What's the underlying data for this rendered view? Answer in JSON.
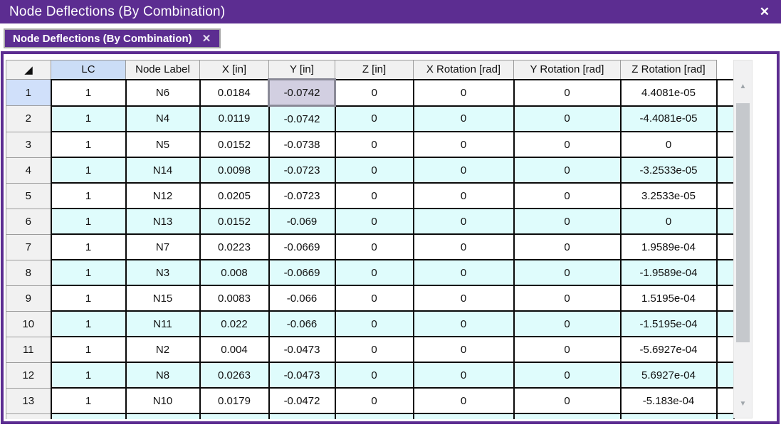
{
  "window": {
    "title": "Node Deflections (By Combination)"
  },
  "tab": {
    "label": "Node Deflections (By Combination)"
  },
  "icons": {
    "close": "✕",
    "corner_triangle": "◢",
    "arrow_up": "▲",
    "arrow_down": "▼"
  },
  "colors": {
    "accent_purple": "#5C2D91",
    "stripe_cyan": "#DFFCFC",
    "header_blue": "#CBDDF6",
    "selected_row_header_blue": "#D0E0FA",
    "selected_cell_fill": "#D2CFE1",
    "selected_cell_border": "#8A8A97"
  },
  "table": {
    "columns": [
      "LC",
      "Node Label",
      "X [in]",
      "Y [in]",
      "Z [in]",
      "X Rotation [rad]",
      "Y Rotation [rad]",
      "Z Rotation [rad]"
    ],
    "selected": {
      "row_num": "1",
      "col_index": 3
    },
    "rows": [
      {
        "num": "1",
        "cells": [
          "1",
          "N6",
          "0.0184",
          "-0.0742",
          "0",
          "0",
          "0",
          "4.4081e-05"
        ]
      },
      {
        "num": "2",
        "cells": [
          "1",
          "N4",
          "0.0119",
          "-0.0742",
          "0",
          "0",
          "0",
          "-4.4081e-05"
        ]
      },
      {
        "num": "3",
        "cells": [
          "1",
          "N5",
          "0.0152",
          "-0.0738",
          "0",
          "0",
          "0",
          "0"
        ]
      },
      {
        "num": "4",
        "cells": [
          "1",
          "N14",
          "0.0098",
          "-0.0723",
          "0",
          "0",
          "0",
          "-3.2533e-05"
        ]
      },
      {
        "num": "5",
        "cells": [
          "1",
          "N12",
          "0.0205",
          "-0.0723",
          "0",
          "0",
          "0",
          "3.2533e-05"
        ]
      },
      {
        "num": "6",
        "cells": [
          "1",
          "N13",
          "0.0152",
          "-0.069",
          "0",
          "0",
          "0",
          "0"
        ]
      },
      {
        "num": "7",
        "cells": [
          "1",
          "N7",
          "0.0223",
          "-0.0669",
          "0",
          "0",
          "0",
          "1.9589e-04"
        ]
      },
      {
        "num": "8",
        "cells": [
          "1",
          "N3",
          "0.008",
          "-0.0669",
          "0",
          "0",
          "0",
          "-1.9589e-04"
        ]
      },
      {
        "num": "9",
        "cells": [
          "1",
          "N15",
          "0.0083",
          "-0.066",
          "0",
          "0",
          "0",
          "1.5195e-04"
        ]
      },
      {
        "num": "10",
        "cells": [
          "1",
          "N11",
          "0.022",
          "-0.066",
          "0",
          "0",
          "0",
          "-1.5195e-04"
        ]
      },
      {
        "num": "11",
        "cells": [
          "1",
          "N2",
          "0.004",
          "-0.0473",
          "0",
          "0",
          "0",
          "-5.6927e-04"
        ]
      },
      {
        "num": "12",
        "cells": [
          "1",
          "N8",
          "0.0263",
          "-0.0473",
          "0",
          "0",
          "0",
          "5.6927e-04"
        ]
      },
      {
        "num": "13",
        "cells": [
          "1",
          "N10",
          "0.0179",
          "-0.0472",
          "0",
          "0",
          "0",
          "-5.183e-04"
        ]
      }
    ]
  }
}
